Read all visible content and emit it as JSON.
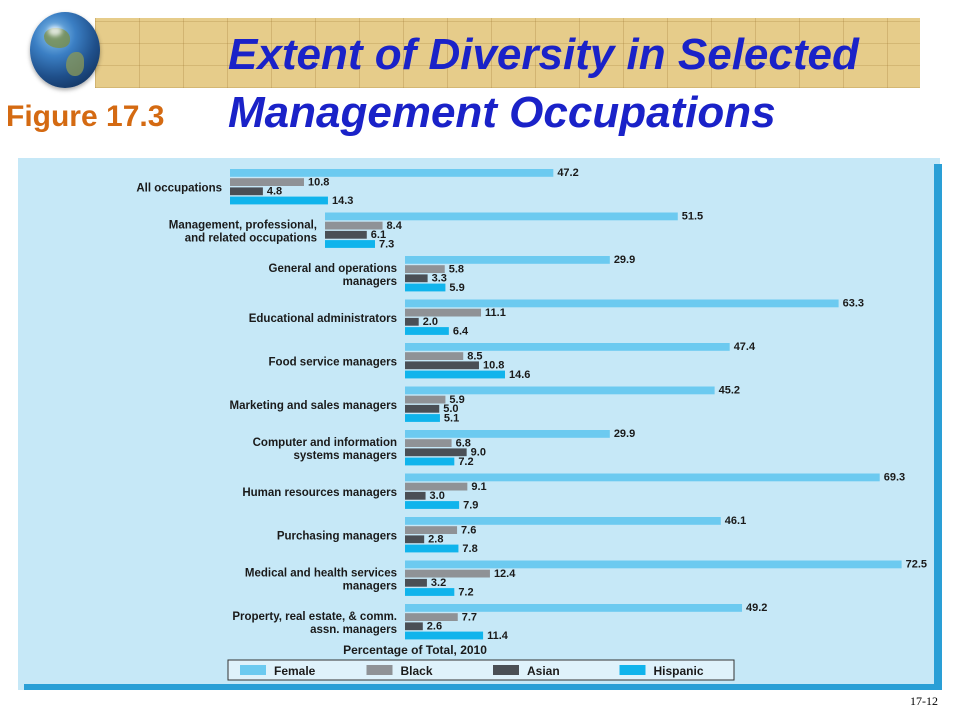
{
  "header": {
    "title_line1": "Extent of Diversity in Selected",
    "figure_label": "Figure 17.3",
    "title_line2": "Management Occupations"
  },
  "slide_number": "17-12",
  "chart_data": {
    "type": "bar",
    "orientation": "horizontal",
    "xlabel": "Percentage of Total, 2010",
    "categories": [
      [
        "All occupations"
      ],
      [
        "Management, professional,",
        "and related occupations"
      ],
      [
        "General and operations",
        "managers"
      ],
      [
        "Educational administrators"
      ],
      [
        "Food service managers"
      ],
      [
        "Marketing and sales managers"
      ],
      [
        "Computer and information",
        "systems managers"
      ],
      [
        "Human resources managers"
      ],
      [
        "Purchasing managers"
      ],
      [
        "Medical and health services",
        "managers"
      ],
      [
        "Property, real estate, & comm.",
        "assn. managers"
      ]
    ],
    "series": [
      {
        "name": "Female",
        "color": "#6ccaf0",
        "values": [
          47.2,
          51.5,
          29.9,
          63.3,
          47.4,
          45.2,
          29.9,
          69.3,
          46.1,
          72.5,
          49.2
        ]
      },
      {
        "name": "Black",
        "color": "#8f9296",
        "values": [
          10.8,
          8.4,
          5.8,
          11.1,
          8.5,
          5.9,
          6.8,
          9.1,
          7.6,
          12.4,
          7.7
        ]
      },
      {
        "name": "Asian",
        "color": "#4a4f55",
        "values": [
          4.8,
          6.1,
          3.3,
          2.0,
          10.8,
          5.0,
          9.0,
          3.0,
          2.8,
          3.2,
          2.6
        ]
      },
      {
        "name": "Hispanic",
        "color": "#10b4ec",
        "values": [
          14.3,
          7.3,
          5.9,
          6.4,
          14.6,
          5.1,
          7.2,
          7.9,
          7.8,
          7.2,
          11.4
        ]
      }
    ],
    "legend_position": "bottom",
    "grid": false
  }
}
